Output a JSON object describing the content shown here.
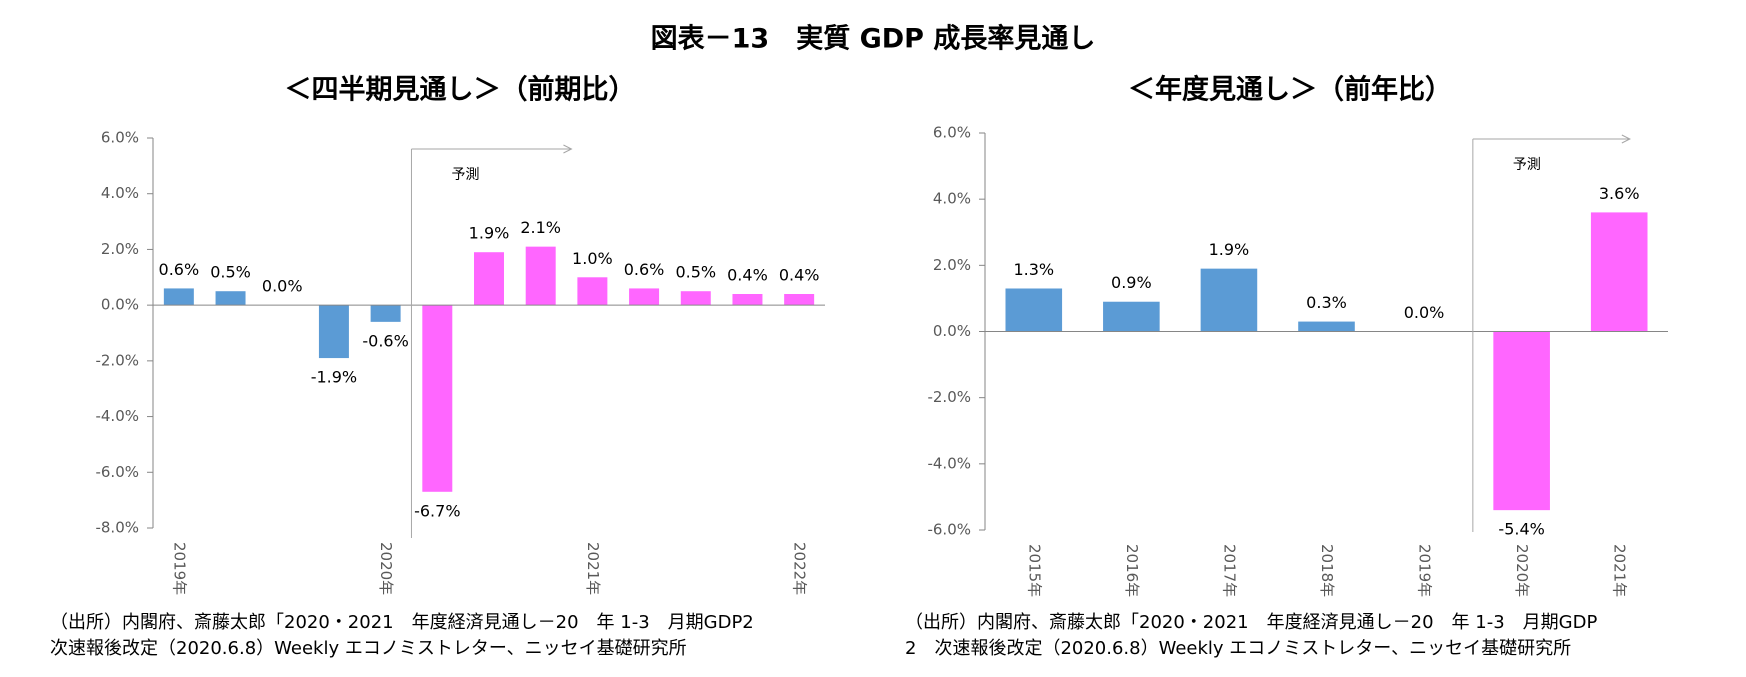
{
  "title": "図表－13　実質 GDP 成長率見通し",
  "chart_data": [
    {
      "type": "bar",
      "title": "＜四半期見通し＞（前期比）",
      "categories": [
        "2019年",
        null,
        null,
        null,
        "2020年",
        null,
        null,
        null,
        "2021年",
        null,
        null,
        null,
        "2022年"
      ],
      "values": [
        0.6,
        0.5,
        0.0,
        -1.9,
        -0.6,
        -6.7,
        1.9,
        2.1,
        1.0,
        0.6,
        0.5,
        0.4,
        0.4
      ],
      "value_labels": [
        "0.6%",
        "0.5%",
        "0.0%",
        "-1.9%",
        "-0.6%",
        "-6.7%",
        "1.9%",
        "2.1%",
        "1.0%",
        "0.6%",
        "0.5%",
        "0.4%",
        "0.4%"
      ],
      "colors": [
        "#5b9bd5",
        "#5b9bd5",
        "#5b9bd5",
        "#5b9bd5",
        "#5b9bd5",
        "#ff66ff",
        "#ff66ff",
        "#ff66ff",
        "#ff66ff",
        "#ff66ff",
        "#ff66ff",
        "#ff66ff",
        "#ff66ff"
      ],
      "annotation": "予測",
      "ylim": [
        -8,
        6
      ],
      "yticks": [
        {
          "value": 6,
          "label": "6.0%"
        },
        {
          "value": 4,
          "label": "4.0%"
        },
        {
          "value": 2,
          "label": "2.0%"
        },
        {
          "value": 0,
          "label": "0.0%"
        },
        {
          "value": -2,
          "label": "-2.0%"
        },
        {
          "value": -4,
          "label": "-4.0%"
        },
        {
          "value": -6,
          "label": "-6.0%"
        },
        {
          "value": -8,
          "label": "-8.0%"
        }
      ],
      "grid": false,
      "source": [
        "（出所）内閣府、斎藤太郎「2020・2021　年度経済見通し－20　年 1-3　月期GDP2",
        "次速報後改定（2020.6.8）Weekly エコノミストレター、ニッセイ基礎研究所"
      ]
    },
    {
      "type": "bar",
      "title": "＜年度見通し＞（前年比）",
      "categories": [
        "2015年",
        "2016年",
        "2017年",
        "2018年",
        "2019年",
        "2020年",
        "2021年"
      ],
      "values": [
        1.3,
        0.9,
        1.9,
        0.3,
        0.0,
        -5.4,
        3.6
      ],
      "value_labels": [
        "1.3%",
        "0.9%",
        "1.9%",
        "0.3%",
        "0.0%",
        "-5.4%",
        "3.6%"
      ],
      "colors": [
        "#5b9bd5",
        "#5b9bd5",
        "#5b9bd5",
        "#5b9bd5",
        "#5b9bd5",
        "#ff66ff",
        "#ff66ff"
      ],
      "annotation": "予測",
      "ylim": [
        -6,
        6
      ],
      "yticks": [
        {
          "value": 6,
          "label": "6.0%"
        },
        {
          "value": 4,
          "label": "4.0%"
        },
        {
          "value": 2,
          "label": "2.0%"
        },
        {
          "value": 0,
          "label": "0.0%"
        },
        {
          "value": -2,
          "label": "-2.0%"
        },
        {
          "value": -4,
          "label": "-4.0%"
        },
        {
          "value": -6,
          "label": "-6.0%"
        }
      ],
      "grid": false,
      "source": [
        "（出所）内閣府、斎藤太郎「2020・2021　年度経済見通し－20　年 1-3　月期GDP",
        "2　次速報後改定（2020.6.8）Weekly エコノミストレター、ニッセイ基礎研究所"
      ]
    }
  ]
}
